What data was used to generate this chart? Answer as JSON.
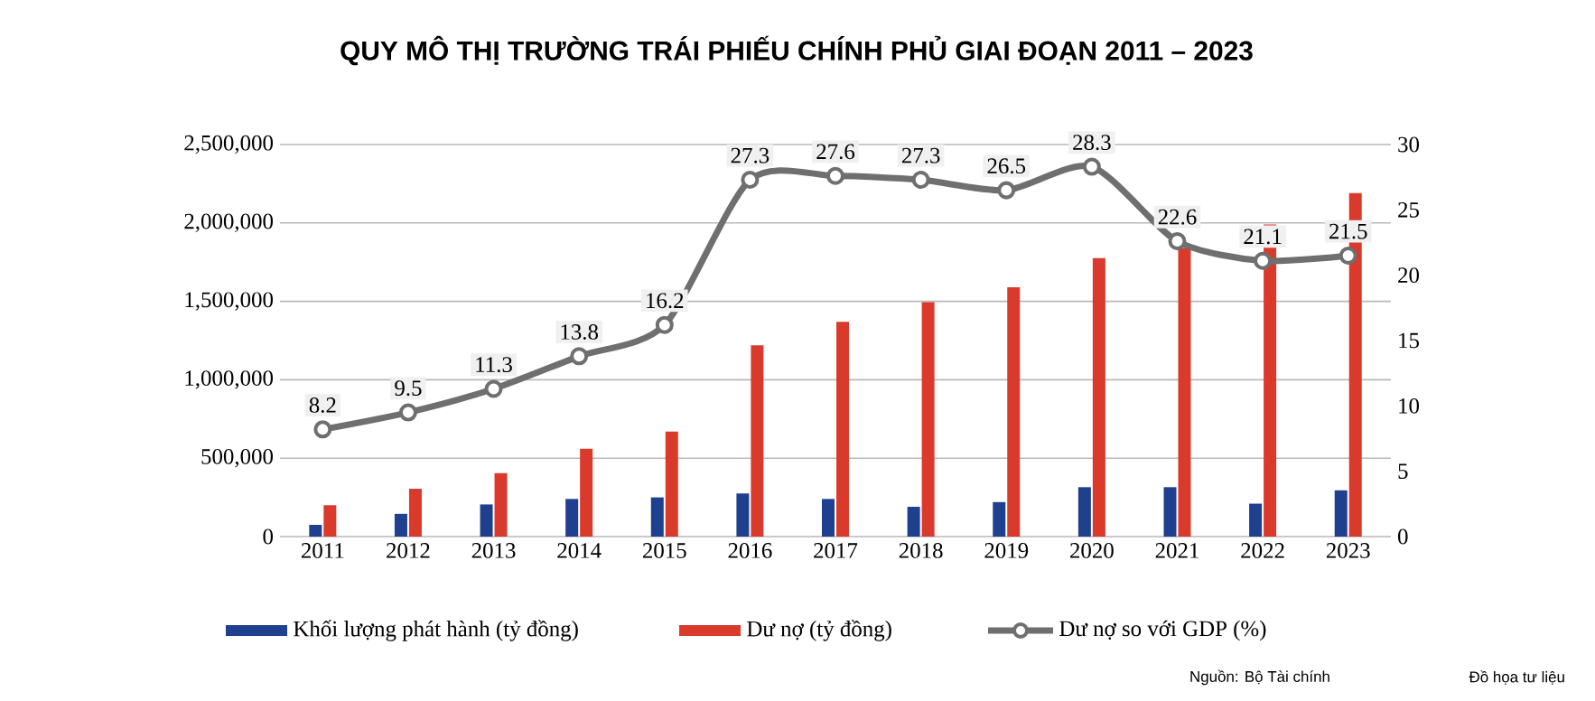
{
  "chart_data": {
    "type": "bar",
    "title": "QUY MÔ THỊ TRƯỜNG TRÁI PHIẾU CHÍNH PHỦ GIAI ĐOẠN 2011 – 2023",
    "categories": [
      "2011",
      "2012",
      "2013",
      "2014",
      "2015",
      "2016",
      "2017",
      "2018",
      "2019",
      "2020",
      "2021",
      "2022",
      "2023"
    ],
    "series": [
      {
        "name": "Khối lượng phát hành (tỷ đồng)",
        "color": "#1f3f8f",
        "values": [
          75000,
          145000,
          205000,
          240000,
          250000,
          275000,
          240000,
          190000,
          220000,
          315000,
          315000,
          210000,
          295000
        ]
      },
      {
        "name": "Dư nợ (tỷ đồng)",
        "color": "#d93a2b",
        "values": [
          200000,
          305000,
          405000,
          560000,
          670000,
          1220000,
          1370000,
          1495000,
          1590000,
          1775000,
          1840000,
          1990000,
          2190000
        ]
      },
      {
        "name": "Dư nợ so với GDP (%)",
        "type": "line",
        "axis": "y2",
        "marker": "circle",
        "color": "#6f6f6f",
        "values": [
          8.2,
          9.5,
          11.3,
          13.8,
          16.2,
          27.3,
          27.6,
          27.3,
          26.5,
          28.3,
          22.6,
          21.1,
          21.5
        ],
        "value_labels": [
          "8.2",
          "9.5",
          "11.3",
          "13.8",
          "16.2",
          "27.3",
          "27.6",
          "27.3",
          "26.5",
          "28.3",
          "22.6",
          "21.1",
          "21.5"
        ]
      }
    ],
    "ylim": [
      0,
      2500000
    ],
    "yticks": [
      0,
      {
        "value": 500000,
        "label": "500,000"
      },
      {
        "value": 1000000,
        "label": "1,000,000"
      },
      {
        "value": 1500000,
        "label": "1,500,000"
      },
      {
        "value": 2000000,
        "label": "2,000,000"
      },
      {
        "value": 2500000,
        "label": "2,500,000"
      }
    ],
    "y2lim": [
      0,
      30
    ],
    "y2ticks": [
      0,
      5,
      10,
      15,
      20,
      25,
      30
    ],
    "grid": "y",
    "legend": "bottom",
    "annotations": [
      "Nguồn: Bộ Tài chính",
      "Đồ họa tư liệu"
    ]
  }
}
